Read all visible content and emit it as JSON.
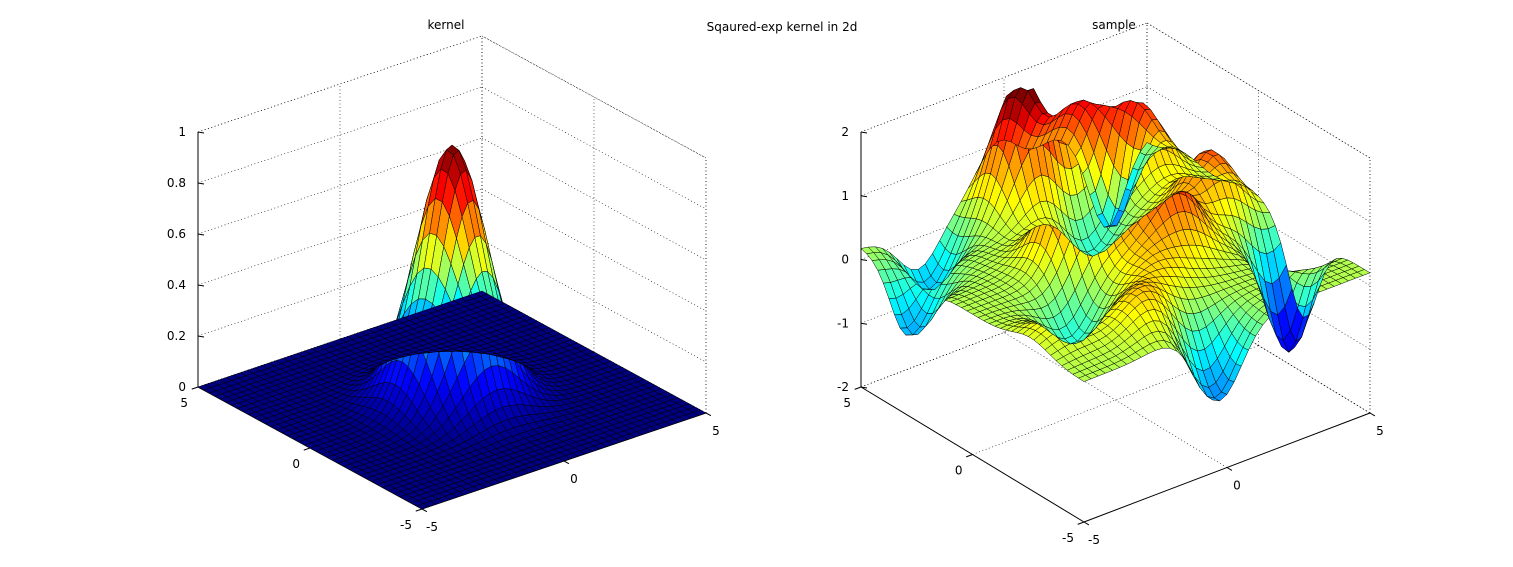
{
  "figure": {
    "suptitle": "Sqaured-exp kernel in 2d"
  },
  "chart_data": [
    {
      "type": "surface",
      "title": "kernel",
      "xlim": [
        -5,
        5
      ],
      "ylim": [
        -5,
        5
      ],
      "zlim": [
        0,
        1
      ],
      "x_ticks": [
        -5,
        0,
        5
      ],
      "y_ticks": [
        -5,
        0,
        5
      ],
      "z_ticks": [
        0,
        0.2,
        0.4,
        0.6,
        0.8,
        1
      ],
      "grid": true,
      "colormap": "jet",
      "grid_resolution": 41,
      "function": "exp(-(x^2 + y^2) / 2)",
      "peak": {
        "x": 0,
        "y": 0,
        "z": 1
      }
    },
    {
      "type": "surface",
      "title": "sample",
      "xlim": [
        -5,
        5
      ],
      "ylim": [
        -5,
        5
      ],
      "zlim": [
        -2,
        2
      ],
      "x_ticks": [
        -5,
        0,
        5
      ],
      "y_ticks": [
        -5,
        0,
        5
      ],
      "z_ticks": [
        -2,
        -1,
        0,
        1,
        2
      ],
      "grid": true,
      "colormap": "jet",
      "grid_resolution": 41,
      "baseline": 0.2,
      "bumps": [
        {
          "x": -0.2,
          "y": 4.0,
          "amp": 2.0,
          "sigma": 0.75
        },
        {
          "x": -1.0,
          "y": 0.5,
          "amp": 1.8,
          "sigma": 0.8
        },
        {
          "x": 1.2,
          "y": -0.6,
          "amp": 1.4,
          "sigma": 0.85
        },
        {
          "x": 3.4,
          "y": 3.4,
          "amp": 1.2,
          "sigma": 0.75
        },
        {
          "x": 1.8,
          "y": 4.0,
          "amp": 1.2,
          "sigma": 0.75
        },
        {
          "x": 3.6,
          "y": 0.4,
          "amp": 1.0,
          "sigma": 0.75
        },
        {
          "x": -1.6,
          "y": -3.5,
          "amp": 0.6,
          "sigma": 0.9
        },
        {
          "x": -0.2,
          "y": -2.0,
          "amp": 0.4,
          "sigma": 0.8
        },
        {
          "x": 4.5,
          "y": -2.0,
          "amp": -1.8,
          "sigma": 0.65
        },
        {
          "x": 3.6,
          "y": 4.8,
          "amp": -1.4,
          "sigma": 0.6
        },
        {
          "x": -4.8,
          "y": 3.0,
          "amp": -1.0,
          "sigma": 0.7
        },
        {
          "x": -0.3,
          "y": -4.8,
          "amp": -1.2,
          "sigma": 0.8
        },
        {
          "x": -3.0,
          "y": 4.5,
          "amp": -0.9,
          "sigma": 0.7
        },
        {
          "x": 0.8,
          "y": 2.2,
          "amp": -0.6,
          "sigma": 0.7
        },
        {
          "x": -2.6,
          "y": -1.5,
          "amp": -0.6,
          "sigma": 0.7
        },
        {
          "x": -4.2,
          "y": -2.6,
          "amp": 0.3,
          "sigma": 0.8
        }
      ]
    }
  ]
}
